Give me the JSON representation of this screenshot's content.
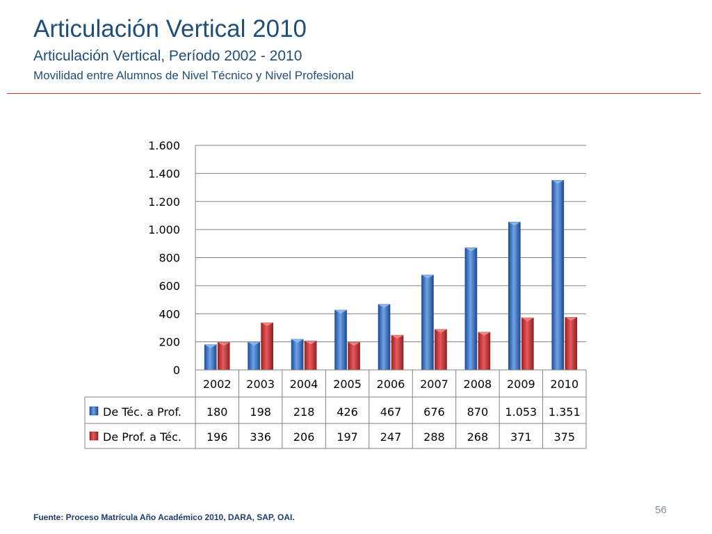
{
  "slide": {
    "title": "Articulación Vertical 2010",
    "subtitle": "Articulación Vertical, Período 2002 - 2010",
    "subtitle2": "Movilidad entre Alumnos de Nivel Técnico y Nivel Profesional",
    "source": "Fuente: Proceso Matrícula Año Académico 2010, DARA, SAP, OAI.",
    "page_number": "56"
  },
  "chart_data": {
    "type": "bar",
    "categories": [
      "2002",
      "2003",
      "2004",
      "2005",
      "2006",
      "2007",
      "2008",
      "2009",
      "2010"
    ],
    "series": [
      {
        "name": "De Téc. a Prof.",
        "values": [
          180,
          198,
          218,
          426,
          467,
          676,
          870,
          1053,
          1351
        ],
        "labels": [
          "180",
          "198",
          "218",
          "426",
          "467",
          "676",
          "870",
          "1.053",
          "1.351"
        ],
        "color": "#3b73c4"
      },
      {
        "name": "De Prof. a Téc.",
        "values": [
          196,
          336,
          206,
          197,
          247,
          288,
          268,
          371,
          375
        ],
        "labels": [
          "196",
          "336",
          "206",
          "197",
          "247",
          "288",
          "268",
          "371",
          "375"
        ],
        "color": "#c0393b"
      }
    ],
    "ylim": [
      0,
      1600
    ],
    "yticks": [
      0,
      200,
      400,
      600,
      800,
      1000,
      1200,
      1400,
      1600
    ],
    "ytick_labels": [
      "0",
      "200",
      "400",
      "600",
      "800",
      "1.000",
      "1.200",
      "1.400",
      "1.600"
    ],
    "grid": true,
    "legend": "data table below chart"
  }
}
